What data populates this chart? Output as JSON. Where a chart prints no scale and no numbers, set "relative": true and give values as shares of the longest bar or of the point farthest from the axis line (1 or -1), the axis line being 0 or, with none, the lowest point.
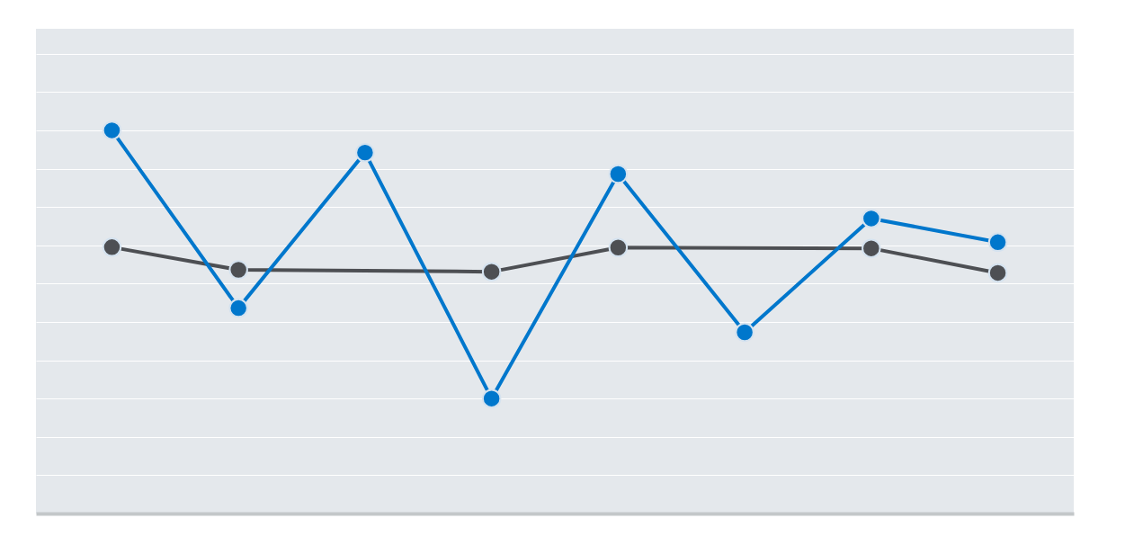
{
  "chart_data": {
    "type": "line",
    "relative": true,
    "categories": [
      null,
      null,
      null,
      null,
      null,
      null,
      null,
      null
    ],
    "series": [
      {
        "color": "#4d4f53",
        "values": [
          0.695,
          0.636,
          null,
          0.631,
          0.694,
          null,
          0.692,
          0.628
        ]
      },
      {
        "color": "#0077cc",
        "values": [
          1,
          0.536,
          0.942,
          0.3,
          0.886,
          0.473,
          0.77,
          0.708
        ]
      }
    ],
    "grid": "y",
    "marker": "circle",
    "line_style": "solid"
  }
}
